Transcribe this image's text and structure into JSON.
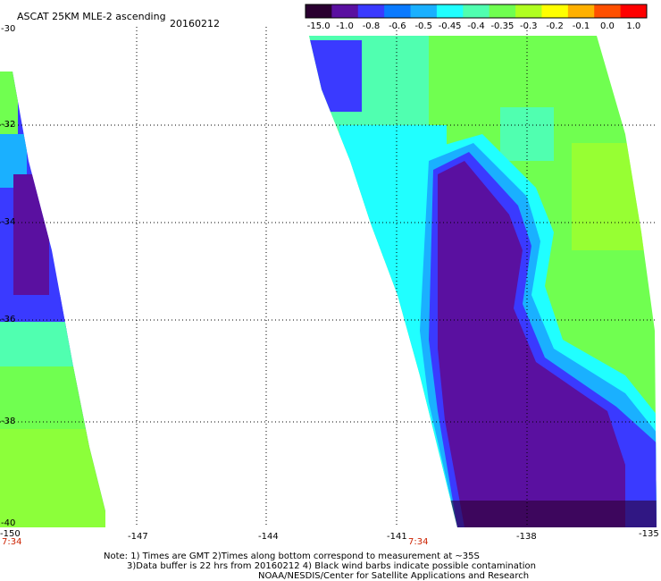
{
  "header": {
    "title": "ASCAT 25KM MLE-2 ascending",
    "date": "20160212"
  },
  "colorbar": {
    "labels": [
      "-15.0",
      "-1.0",
      "-0.8",
      "-0.6",
      "-0.5",
      "-0.45",
      "-0.4",
      "-0.35",
      "-0.3",
      "-0.2",
      "-0.1",
      "0.0",
      "1.0"
    ],
    "colors": [
      "#2a0030",
      "#5a10a0",
      "#3a3aff",
      "#0a7aff",
      "#1ab0ff",
      "#20ffff",
      "#50ffb0",
      "#70ff50",
      "#b0ff20",
      "#ffff00",
      "#ffb000",
      "#ff5000",
      "#ff0000"
    ]
  },
  "axes": {
    "lat_labels": [
      "-30",
      "-32",
      "-34",
      "-36",
      "-38",
      "-40"
    ],
    "lon_labels": [
      "-150",
      "-147",
      "-144",
      "-141",
      "-138",
      "-135"
    ],
    "time_labels": [
      "7:34",
      "7:34"
    ],
    "lat_range": [
      -40,
      -30
    ],
    "lon_range": [
      -150,
      -135
    ]
  },
  "notes": {
    "line1": "Note: 1) Times are GMT 2)Times along bottom correspond to measurement at ~35S",
    "line2": "3)Data buffer is 22 hrs from 20160212 4) Black wind barbs indicate possible contamination",
    "line3": "NOAA/NESDIS/Center for Satellite Applications and Research"
  }
}
